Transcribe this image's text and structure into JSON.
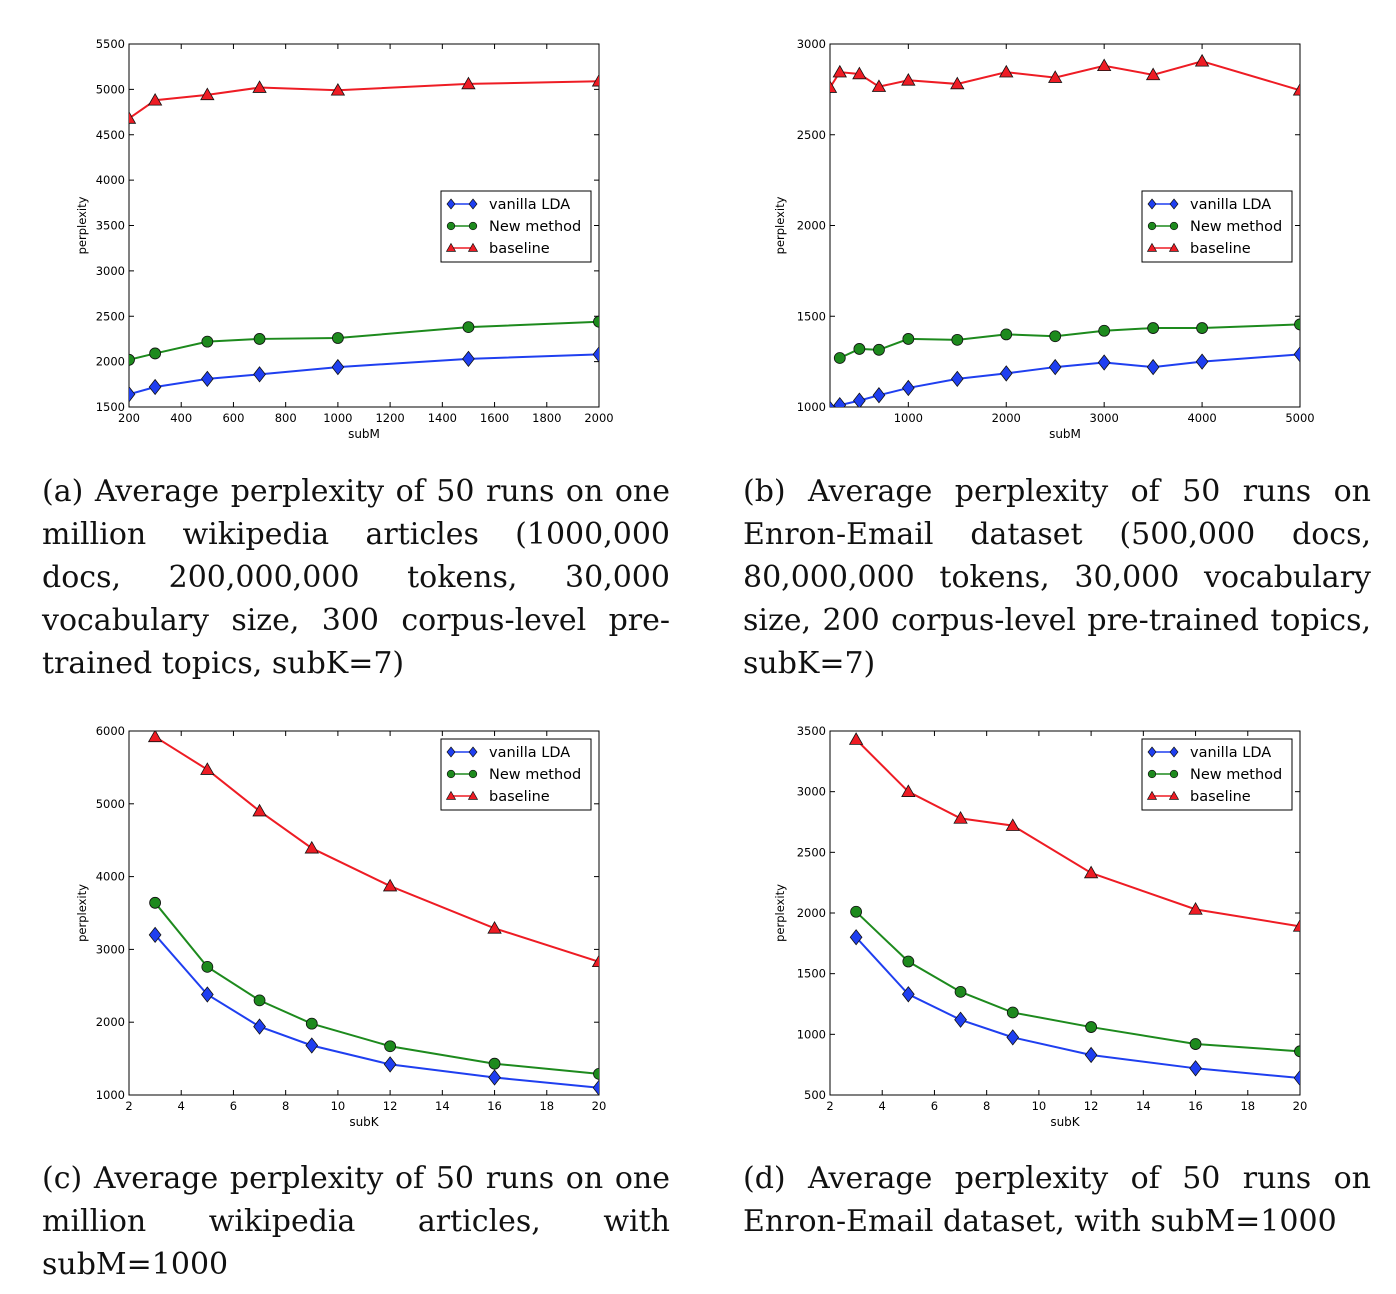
{
  "legend_labels": [
    "vanilla LDA",
    "New method",
    "baseline"
  ],
  "colors": {
    "vanilla": "#1f3ff0",
    "new": "#1d8a1d",
    "baseline": "#ee1c24"
  },
  "chart_data": [
    {
      "type": "line",
      "panel": "a",
      "xlabel": "subM",
      "ylabel": "perplexity",
      "xlim": [
        200,
        2000
      ],
      "ylim": [
        1500,
        5500
      ],
      "xticks": [
        200,
        400,
        600,
        800,
        1000,
        1200,
        1400,
        1600,
        1800,
        2000
      ],
      "yticks": [
        1500,
        2000,
        2500,
        3000,
        3500,
        4000,
        4500,
        5000,
        5500
      ],
      "legend": "center-right",
      "series": [
        {
          "name": "vanilla LDA",
          "marker": "diamond",
          "color": "#1f3ff0",
          "x": [
            200,
            300,
            500,
            700,
            1000,
            1500,
            2000
          ],
          "y": [
            1640,
            1720,
            1810,
            1860,
            1940,
            2030,
            2080
          ]
        },
        {
          "name": "New method",
          "marker": "circle",
          "color": "#1d8a1d",
          "x": [
            200,
            300,
            500,
            700,
            1000,
            1500,
            2000
          ],
          "y": [
            2020,
            2090,
            2220,
            2250,
            2260,
            2380,
            2440
          ]
        },
        {
          "name": "baseline",
          "marker": "triangle",
          "color": "#ee1c24",
          "x": [
            200,
            300,
            500,
            700,
            1000,
            1500,
            2000
          ],
          "y": [
            4680,
            4880,
            4940,
            5020,
            4990,
            5060,
            5090
          ]
        }
      ],
      "caption": "(a) Average perplexity of 50 runs on one million wikipedia articles (1000,000 docs, 200,000,000 tokens, 30,000 vocabulary size, 300 corpus-level pre-trained topics, subK=7)"
    },
    {
      "type": "line",
      "panel": "b",
      "xlabel": "subM",
      "ylabel": "perplexity",
      "xlim": [
        200,
        5000
      ],
      "ylim": [
        1000,
        3000
      ],
      "xticks": [
        1000,
        2000,
        3000,
        4000,
        5000
      ],
      "yticks": [
        1000,
        1500,
        2000,
        2500,
        3000
      ],
      "legend": "center-right",
      "series": [
        {
          "name": "vanilla LDA",
          "marker": "diamond",
          "color": "#1f3ff0",
          "x": [
            200,
            300,
            500,
            700,
            1000,
            1500,
            2000,
            2500,
            3000,
            3500,
            4000,
            5000
          ],
          "y": [
            990,
            1010,
            1035,
            1065,
            1105,
            1155,
            1185,
            1220,
            1245,
            1220,
            1250,
            1290
          ]
        },
        {
          "name": "New method",
          "marker": "circle",
          "color": "#1d8a1d",
          "x": [
            300,
            500,
            700,
            1000,
            1500,
            2000,
            2500,
            3000,
            3500,
            4000,
            5000
          ],
          "y": [
            1270,
            1320,
            1315,
            1375,
            1370,
            1400,
            1390,
            1420,
            1435,
            1435,
            1455
          ]
        },
        {
          "name": "baseline",
          "marker": "triangle",
          "color": "#ee1c24",
          "x": [
            200,
            300,
            500,
            700,
            1000,
            1500,
            2000,
            2500,
            3000,
            3500,
            4000,
            5000
          ],
          "y": [
            2760,
            2845,
            2835,
            2765,
            2800,
            2780,
            2845,
            2815,
            2880,
            2830,
            2905,
            2745
          ]
        }
      ],
      "caption": "(b) Average perplexity of 50 runs on Enron-Email dataset (500,000 docs, 80,000,000 tokens, 30,000 vocabulary size, 200 corpus-level pre-trained topics, subK=7)"
    },
    {
      "type": "line",
      "panel": "c",
      "xlabel": "subK",
      "ylabel": "perplexity",
      "xlim": [
        2,
        20
      ],
      "ylim": [
        1000,
        6000
      ],
      "xticks": [
        2,
        4,
        6,
        8,
        10,
        12,
        14,
        16,
        18,
        20
      ],
      "yticks": [
        1000,
        2000,
        3000,
        4000,
        5000,
        6000
      ],
      "legend": "upper-right",
      "series": [
        {
          "name": "vanilla LDA",
          "marker": "diamond",
          "color": "#1f3ff0",
          "x": [
            3,
            5,
            7,
            9,
            12,
            16,
            20
          ],
          "y": [
            3200,
            2380,
            1940,
            1680,
            1420,
            1240,
            1100
          ]
        },
        {
          "name": "New method",
          "marker": "circle",
          "color": "#1d8a1d",
          "x": [
            3,
            5,
            7,
            9,
            12,
            16,
            20
          ],
          "y": [
            3640,
            2760,
            2300,
            1980,
            1670,
            1430,
            1290
          ]
        },
        {
          "name": "baseline",
          "marker": "triangle",
          "color": "#ee1c24",
          "x": [
            3,
            5,
            7,
            9,
            12,
            16,
            20
          ],
          "y": [
            5920,
            5470,
            4900,
            4390,
            3870,
            3290,
            2830
          ]
        }
      ],
      "caption": "(c) Average perplexity of 50 runs on one million wikipedia articles, with subM=1000"
    },
    {
      "type": "line",
      "panel": "d",
      "xlabel": "subK",
      "ylabel": "perplexity",
      "xlim": [
        2,
        20
      ],
      "ylim": [
        500,
        3500
      ],
      "xticks": [
        2,
        4,
        6,
        8,
        10,
        12,
        14,
        16,
        18,
        20
      ],
      "yticks": [
        500,
        1000,
        1500,
        2000,
        2500,
        3000,
        3500
      ],
      "legend": "upper-right",
      "series": [
        {
          "name": "vanilla LDA",
          "marker": "diamond",
          "color": "#1f3ff0",
          "x": [
            3,
            5,
            7,
            9,
            12,
            16,
            20
          ],
          "y": [
            1800,
            1330,
            1120,
            975,
            830,
            720,
            640
          ]
        },
        {
          "name": "New method",
          "marker": "circle",
          "color": "#1d8a1d",
          "x": [
            3,
            5,
            7,
            9,
            12,
            16,
            20
          ],
          "y": [
            2010,
            1600,
            1350,
            1180,
            1060,
            920,
            860
          ]
        },
        {
          "name": "baseline",
          "marker": "triangle",
          "color": "#ee1c24",
          "x": [
            3,
            5,
            7,
            9,
            12,
            16,
            20
          ],
          "y": [
            3430,
            3000,
            2780,
            2720,
            2330,
            2030,
            1890
          ]
        }
      ],
      "caption": "(d) Average perplexity of 50 runs on Enron-Email dataset, with subM=1000"
    }
  ]
}
